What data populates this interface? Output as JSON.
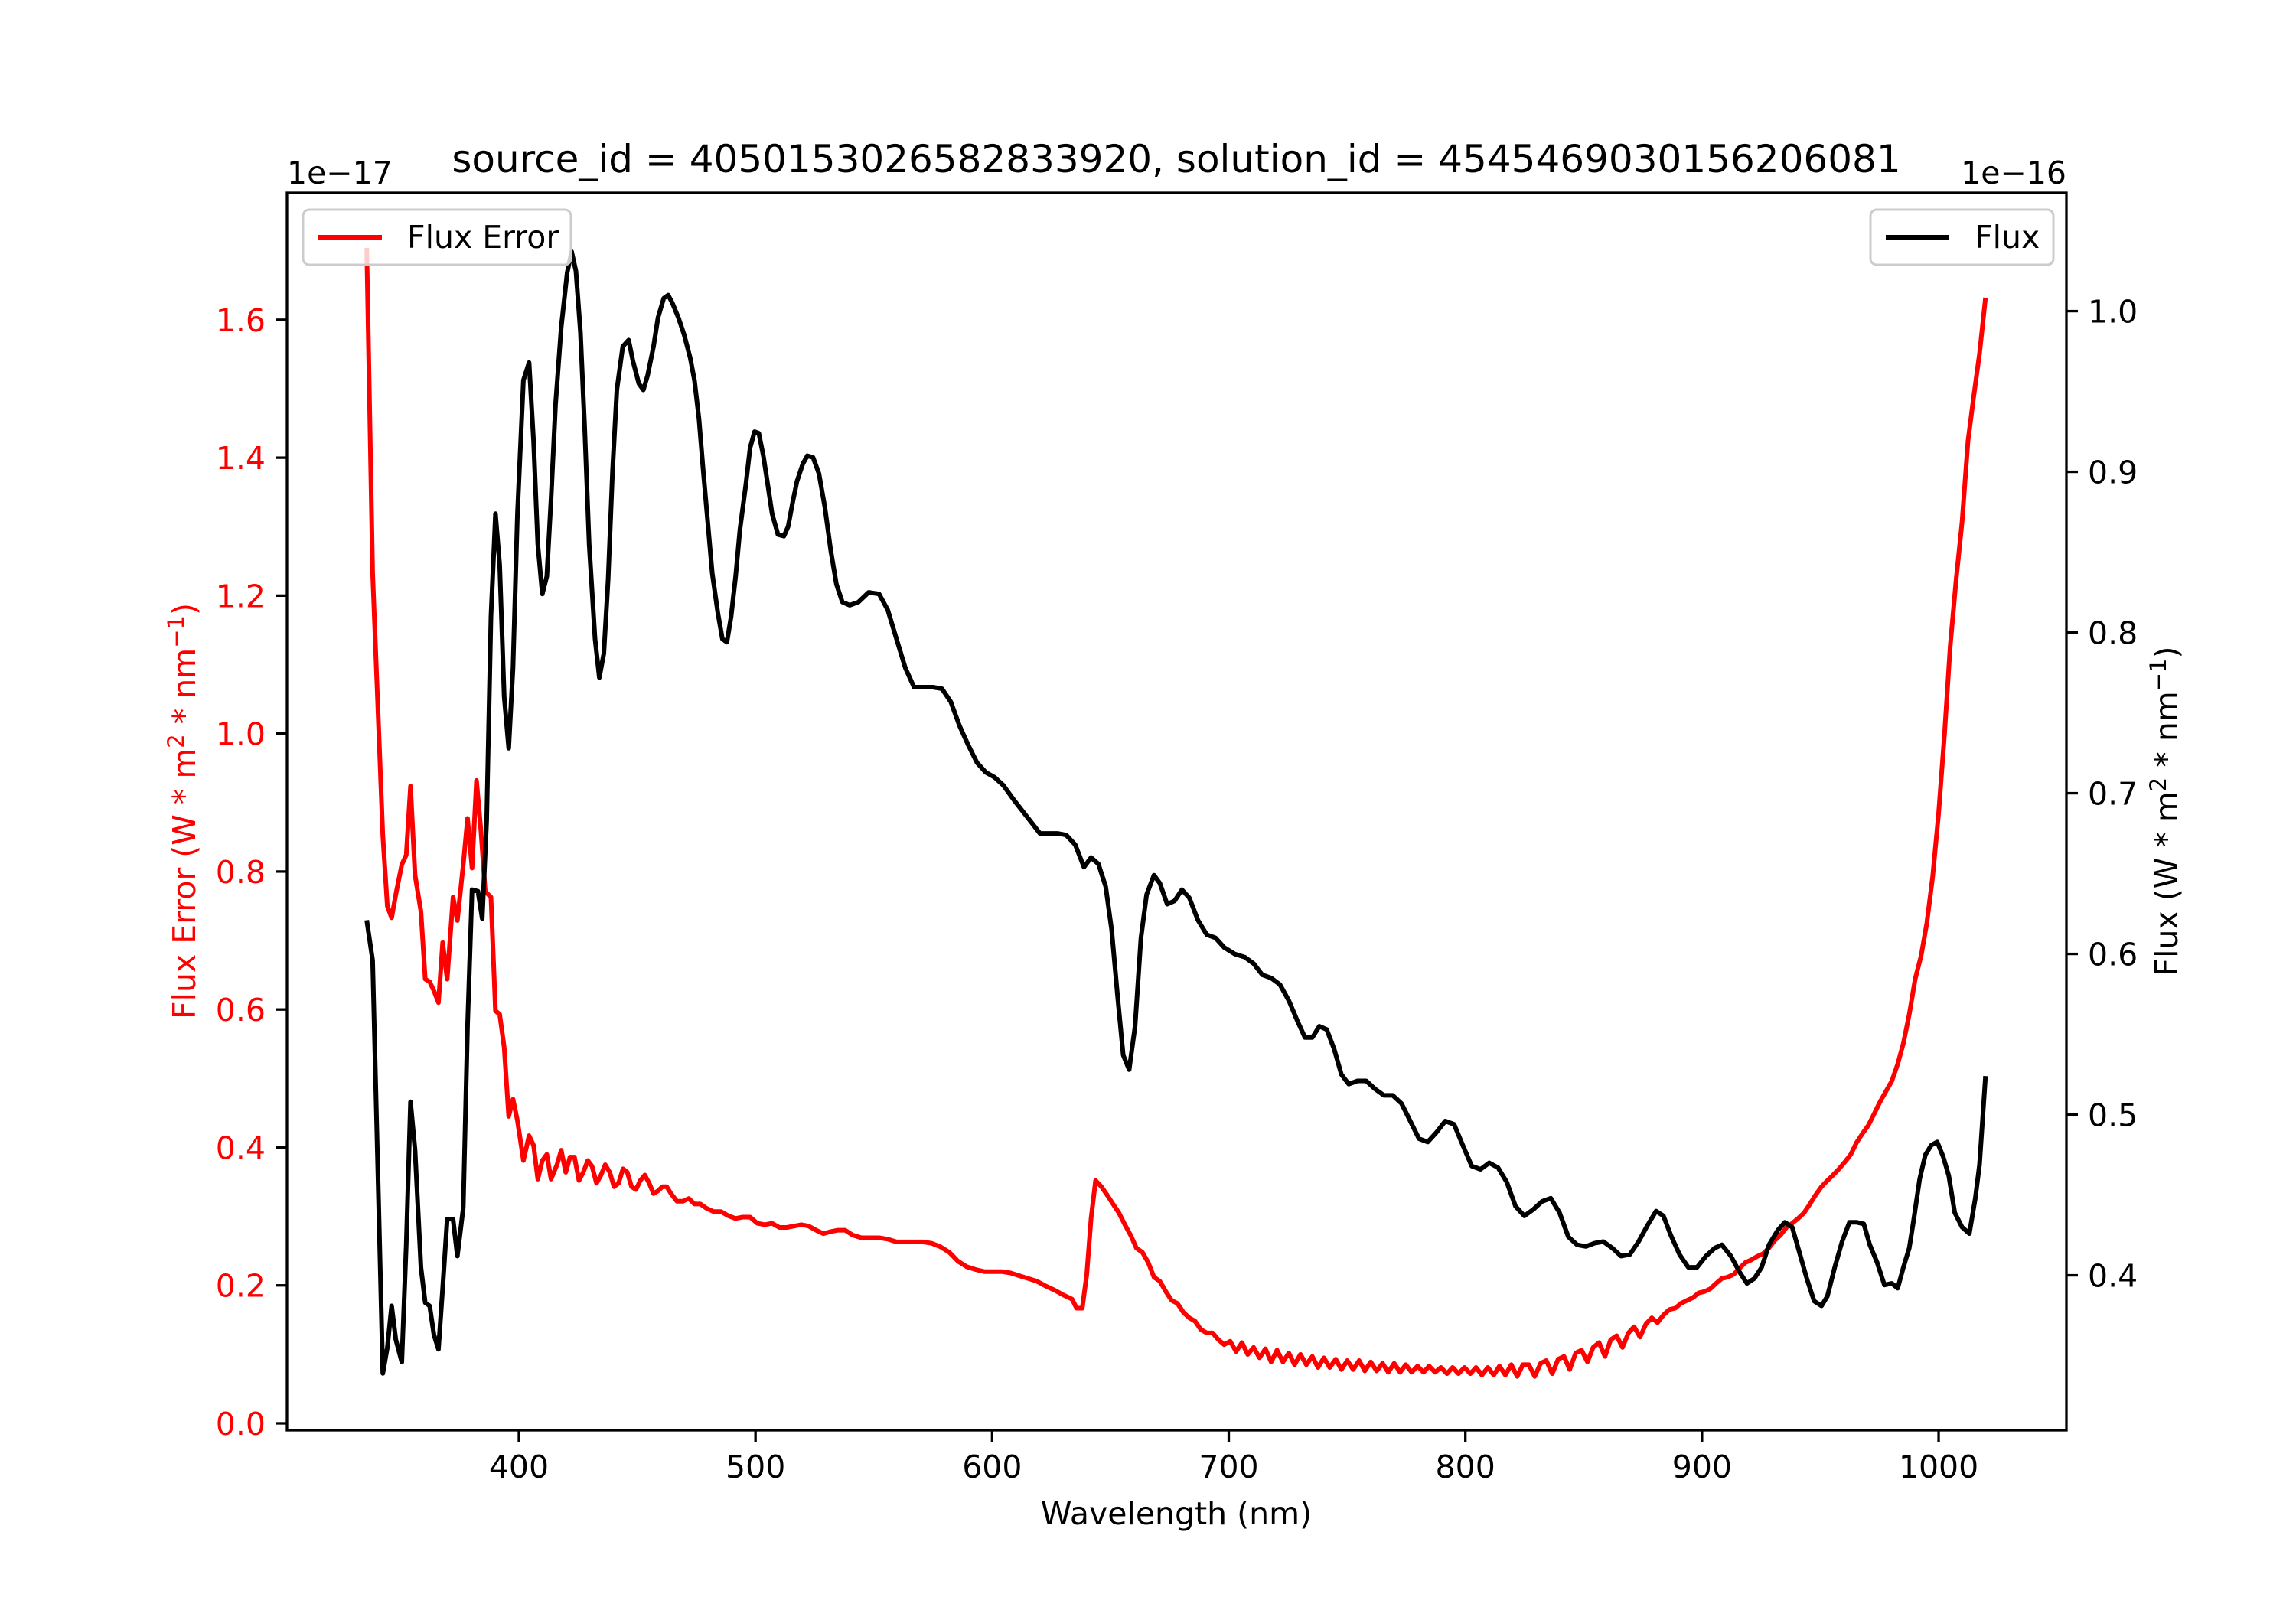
{
  "chart_data": {
    "type": "line",
    "title": "source_id = 4050153026582833920, solution_id = 4545469030156206081",
    "xlabel": "Wavelength (nm)",
    "xlim": [
      302,
      1054
    ],
    "xticks": [
      400,
      500,
      600,
      700,
      800,
      900,
      1000
    ],
    "left_axis": {
      "ylabel_parts": [
        "Flux Error (W * m",
        "2",
        " * nm",
        "−1",
        ")"
      ],
      "offset_text": "1e−17",
      "ylim": [
        -0.01,
        1.784
      ],
      "yticks": [
        "0.0",
        "0.2",
        "0.4",
        "0.6",
        "0.8",
        "1.0",
        "1.2",
        "1.4",
        "1.6"
      ],
      "color": "#ff0000"
    },
    "right_axis": {
      "ylabel_parts": [
        "Flux (W * m",
        "2",
        " * nm",
        "−1",
        ")"
      ],
      "offset_text": "1e−16",
      "ylim": [
        0.3036,
        1.0736
      ],
      "yticks": [
        "0.4",
        "0.5",
        "0.6",
        "0.7",
        "0.8",
        "0.9",
        "1.0"
      ],
      "color": "#000000"
    },
    "legend_left": {
      "label": "Flux Error",
      "placement": "upper-left"
    },
    "legend_right": {
      "label": "Flux",
      "placement": "upper-right"
    },
    "series": [
      {
        "name": "Flux Error",
        "axis": "left",
        "color": "#ff0000",
        "x": [
          335.7,
          338.2,
          340.7,
          342.5,
          344.4,
          346.2,
          348.0,
          350.5,
          352.4,
          354.2,
          356.1,
          358.6,
          360.4,
          362.3,
          364.1,
          366.0,
          367.8,
          369.7,
          372.2,
          374.0,
          376.5,
          378.3,
          380.2,
          382.1,
          383.9,
          385.8,
          388.2,
          390.1,
          391.9,
          393.8,
          395.7,
          397.5,
          399.4,
          401.9,
          404.3,
          406.2,
          408.0,
          409.9,
          411.8,
          413.6,
          416.1,
          417.9,
          419.8,
          421.6,
          423.5,
          425.4,
          427.2,
          429.1,
          430.9,
          432.8,
          434.7,
          436.5,
          438.4,
          440.2,
          442.1,
          444.0,
          445.8,
          447.6,
          449.5,
          451.3,
          453.2,
          455.1,
          456.9,
          458.8,
          460.6,
          462.5,
          464.3,
          466.8,
          469.3,
          471.8,
          474.2,
          476.7,
          479.2,
          482.3,
          485.4,
          488.5,
          491.5,
          494.6,
          497.7,
          500.8,
          503.9,
          507.0,
          510.1,
          513.2,
          516.3,
          519.4,
          522.5,
          525.6,
          528.7,
          531.8,
          534.8,
          537.9,
          541.0,
          544.7,
          548.5,
          552.2,
          555.9,
          559.6,
          563.3,
          567.0,
          570.7,
          574.4,
          578.1,
          581.9,
          585.6,
          589.3,
          593.0,
          596.7,
          600.4,
          604.1,
          607.8,
          611.5,
          615.2,
          618.9,
          622.7,
          626.4,
          630.1,
          633.8,
          635.7,
          638.1,
          640.0,
          641.8,
          643.7,
          646.2,
          648.6,
          651.1,
          653.6,
          656.1,
          658.5,
          661.0,
          663.5,
          666.0,
          668.4,
          670.9,
          673.4,
          675.9,
          678.3,
          680.8,
          683.3,
          685.8,
          688.2,
          690.7,
          693.2,
          695.7,
          698.1,
          700.6,
          703.1,
          705.6,
          708.0,
          710.5,
          713.0,
          715.5,
          717.9,
          720.4,
          722.9,
          725.4,
          727.8,
          730.3,
          732.8,
          735.3,
          737.7,
          740.2,
          742.7,
          745.2,
          747.6,
          750.1,
          752.6,
          755.1,
          757.5,
          760.0,
          762.5,
          765.0,
          767.4,
          769.9,
          772.4,
          774.8,
          777.3,
          779.8,
          782.3,
          784.7,
          787.2,
          789.7,
          792.2,
          794.6,
          797.1,
          799.6,
          802.1,
          804.5,
          807.0,
          809.5,
          812.0,
          814.4,
          816.9,
          819.4,
          821.9,
          824.3,
          826.8,
          829.3,
          831.8,
          834.2,
          836.7,
          839.2,
          841.7,
          844.1,
          846.6,
          849.1,
          851.6,
          854.0,
          856.5,
          859.0,
          861.4,
          863.9,
          866.4,
          868.9,
          871.3,
          873.8,
          876.3,
          878.8,
          881.2,
          883.7,
          886.2,
          888.7,
          891.1,
          893.6,
          896.1,
          898.6,
          901.0,
          903.5,
          906.0,
          908.4,
          910.9,
          913.4,
          915.9,
          918.3,
          920.8,
          923.3,
          925.8,
          928.2,
          930.7,
          933.2,
          935.7,
          938.1,
          940.6,
          943.1,
          945.6,
          948.0,
          950.5,
          953.0,
          955.4,
          957.9,
          960.4,
          962.9,
          965.3,
          967.8,
          970.3,
          972.8,
          975.2,
          977.7,
          980.2,
          982.7,
          985.1,
          987.6,
          990.1,
          992.6,
          995.0,
          997.5,
          1000.0,
          1002.5,
          1004.9,
          1007.4,
          1009.9,
          1012.4,
          1014.8,
          1017.3,
          1019.8
        ],
        "y": [
          1.704,
          1.233,
          1.011,
          0.852,
          0.75,
          0.733,
          0.767,
          0.81,
          0.824,
          0.924,
          0.795,
          0.742,
          0.644,
          0.64,
          0.627,
          0.61,
          0.697,
          0.644,
          0.763,
          0.729,
          0.81,
          0.877,
          0.805,
          0.932,
          0.862,
          0.771,
          0.763,
          0.598,
          0.593,
          0.545,
          0.445,
          0.47,
          0.439,
          0.381,
          0.417,
          0.403,
          0.354,
          0.381,
          0.39,
          0.354,
          0.375,
          0.396,
          0.364,
          0.386,
          0.386,
          0.352,
          0.364,
          0.381,
          0.373,
          0.348,
          0.36,
          0.375,
          0.364,
          0.343,
          0.348,
          0.369,
          0.364,
          0.343,
          0.339,
          0.352,
          0.36,
          0.348,
          0.333,
          0.337,
          0.343,
          0.343,
          0.333,
          0.322,
          0.322,
          0.326,
          0.318,
          0.318,
          0.312,
          0.307,
          0.307,
          0.301,
          0.297,
          0.299,
          0.299,
          0.29,
          0.288,
          0.29,
          0.284,
          0.284,
          0.286,
          0.288,
          0.286,
          0.28,
          0.275,
          0.278,
          0.28,
          0.28,
          0.273,
          0.269,
          0.269,
          0.269,
          0.267,
          0.263,
          0.263,
          0.263,
          0.263,
          0.261,
          0.256,
          0.248,
          0.235,
          0.227,
          0.223,
          0.22,
          0.22,
          0.22,
          0.218,
          0.214,
          0.21,
          0.206,
          0.199,
          0.193,
          0.186,
          0.18,
          0.167,
          0.167,
          0.216,
          0.297,
          0.352,
          0.343,
          0.331,
          0.318,
          0.305,
          0.288,
          0.273,
          0.254,
          0.248,
          0.233,
          0.212,
          0.206,
          0.191,
          0.178,
          0.174,
          0.161,
          0.153,
          0.148,
          0.136,
          0.131,
          0.131,
          0.121,
          0.114,
          0.119,
          0.104,
          0.117,
          0.1,
          0.11,
          0.095,
          0.108,
          0.089,
          0.106,
          0.089,
          0.102,
          0.085,
          0.1,
          0.085,
          0.097,
          0.081,
          0.095,
          0.081,
          0.093,
          0.078,
          0.091,
          0.078,
          0.091,
          0.076,
          0.089,
          0.076,
          0.087,
          0.074,
          0.087,
          0.074,
          0.085,
          0.074,
          0.083,
          0.074,
          0.083,
          0.074,
          0.081,
          0.072,
          0.081,
          0.072,
          0.081,
          0.072,
          0.081,
          0.07,
          0.081,
          0.07,
          0.083,
          0.07,
          0.085,
          0.068,
          0.085,
          0.085,
          0.068,
          0.087,
          0.091,
          0.072,
          0.093,
          0.097,
          0.078,
          0.102,
          0.106,
          0.089,
          0.11,
          0.117,
          0.097,
          0.121,
          0.127,
          0.11,
          0.131,
          0.14,
          0.125,
          0.144,
          0.153,
          0.146,
          0.157,
          0.165,
          0.167,
          0.174,
          0.178,
          0.182,
          0.189,
          0.191,
          0.195,
          0.203,
          0.21,
          0.212,
          0.216,
          0.225,
          0.233,
          0.237,
          0.242,
          0.246,
          0.254,
          0.265,
          0.273,
          0.284,
          0.29,
          0.297,
          0.305,
          0.318,
          0.331,
          0.343,
          0.352,
          0.36,
          0.369,
          0.379,
          0.39,
          0.407,
          0.42,
          0.432,
          0.449,
          0.466,
          0.481,
          0.496,
          0.521,
          0.551,
          0.593,
          0.644,
          0.678,
          0.725,
          0.793,
          0.884,
          1.0,
          1.127,
          1.223,
          1.307,
          1.424,
          1.488,
          1.551,
          1.632
        ]
      },
      {
        "name": "Flux",
        "axis": "right",
        "color": "#000000",
        "x": [
          335.7,
          338.2,
          340.7,
          342.5,
          344.4,
          346.2,
          348.0,
          350.5,
          352.4,
          354.2,
          356.1,
          358.6,
          360.4,
          362.3,
          364.1,
          366.0,
          367.8,
          369.7,
          372.2,
          374.0,
          376.5,
          378.3,
          380.2,
          382.7,
          384.5,
          386.4,
          388.2,
          390.1,
          391.9,
          393.8,
          395.7,
          397.5,
          399.4,
          401.9,
          404.3,
          406.2,
          408.0,
          409.9,
          411.8,
          413.6,
          415.5,
          417.9,
          420.4,
          422.3,
          424.1,
          426.0,
          427.8,
          429.7,
          432.2,
          434.0,
          435.9,
          437.7,
          439.6,
          441.4,
          443.9,
          446.4,
          448.2,
          450.7,
          452.6,
          454.4,
          456.9,
          458.8,
          461.2,
          463.1,
          464.9,
          467.4,
          469.9,
          472.4,
          474.2,
          476.1,
          477.9,
          479.8,
          481.7,
          484.1,
          486.0,
          487.9,
          489.7,
          491.6,
          493.4,
          495.9,
          497.7,
          499.6,
          501.4,
          503.3,
          505.2,
          507.0,
          509.5,
          512.0,
          513.8,
          515.7,
          517.5,
          520.0,
          521.9,
          524.3,
          526.8,
          529.3,
          531.8,
          534.2,
          536.7,
          539.8,
          543.5,
          547.8,
          552.2,
          555.9,
          559.6,
          563.3,
          567.0,
          570.7,
          575.0,
          578.8,
          582.5,
          586.2,
          589.9,
          593.6,
          597.3,
          601.0,
          604.7,
          609.1,
          612.8,
          616.5,
          620.2,
          623.9,
          627.6,
          631.3,
          635.1,
          638.8,
          641.8,
          644.9,
          648.0,
          650.5,
          653.0,
          655.4,
          657.9,
          660.4,
          662.9,
          665.3,
          668.4,
          670.9,
          674.0,
          677.1,
          680.2,
          683.3,
          687.0,
          690.7,
          694.4,
          698.1,
          702.5,
          706.8,
          710.5,
          714.2,
          717.9,
          721.6,
          725.4,
          729.1,
          732.2,
          735.3,
          738.3,
          741.4,
          744.5,
          747.6,
          750.7,
          754.4,
          758.1,
          761.8,
          765.6,
          769.3,
          773.0,
          776.7,
          780.4,
          784.1,
          787.8,
          791.5,
          795.2,
          798.9,
          802.7,
          806.4,
          810.1,
          813.8,
          817.5,
          821.2,
          824.9,
          828.7,
          832.4,
          836.1,
          839.8,
          843.5,
          847.2,
          850.9,
          854.6,
          858.3,
          862.1,
          865.8,
          869.5,
          873.2,
          876.9,
          880.6,
          883.7,
          886.8,
          890.5,
          894.2,
          897.9,
          901.7,
          905.4,
          908.4,
          912.2,
          915.9,
          919.0,
          922.1,
          925.2,
          928.3,
          932.0,
          935.0,
          938.1,
          941.2,
          944.3,
          947.4,
          950.5,
          953.0,
          956.1,
          959.2,
          962.3,
          965.4,
          968.4,
          970.9,
          974.0,
          977.1,
          980.2,
          982.7,
          985.1,
          987.6,
          989.5,
          992.0,
          994.4,
          996.9,
          999.4,
          1001.9,
          1004.3,
          1006.8,
          1009.9,
          1013.0,
          1015.5,
          1017.3,
          1019.8
        ],
        "y": [
          0.621,
          0.596,
          0.446,
          0.339,
          0.355,
          0.381,
          0.36,
          0.346,
          0.419,
          0.508,
          0.478,
          0.405,
          0.383,
          0.381,
          0.363,
          0.354,
          0.392,
          0.435,
          0.435,
          0.412,
          0.442,
          0.555,
          0.64,
          0.639,
          0.622,
          0.683,
          0.81,
          0.874,
          0.842,
          0.76,
          0.728,
          0.778,
          0.874,
          0.957,
          0.968,
          0.919,
          0.855,
          0.824,
          0.835,
          0.883,
          0.942,
          0.99,
          1.024,
          1.037,
          1.025,
          0.987,
          0.928,
          0.855,
          0.796,
          0.772,
          0.787,
          0.833,
          0.901,
          0.951,
          0.978,
          0.982,
          0.969,
          0.955,
          0.951,
          0.96,
          0.978,
          0.996,
          1.008,
          1.01,
          1.005,
          0.996,
          0.985,
          0.971,
          0.957,
          0.933,
          0.901,
          0.869,
          0.837,
          0.812,
          0.796,
          0.794,
          0.81,
          0.835,
          0.864,
          0.892,
          0.915,
          0.925,
          0.924,
          0.91,
          0.892,
          0.874,
          0.861,
          0.86,
          0.866,
          0.881,
          0.894,
          0.905,
          0.91,
          0.909,
          0.899,
          0.878,
          0.851,
          0.83,
          0.819,
          0.817,
          0.819,
          0.825,
          0.824,
          0.814,
          0.796,
          0.778,
          0.766,
          0.766,
          0.766,
          0.765,
          0.757,
          0.742,
          0.73,
          0.719,
          0.713,
          0.71,
          0.705,
          0.696,
          0.689,
          0.682,
          0.675,
          0.675,
          0.675,
          0.674,
          0.668,
          0.654,
          0.66,
          0.656,
          0.642,
          0.615,
          0.574,
          0.537,
          0.528,
          0.555,
          0.61,
          0.637,
          0.649,
          0.644,
          0.631,
          0.633,
          0.64,
          0.635,
          0.621,
          0.612,
          0.61,
          0.604,
          0.6,
          0.598,
          0.594,
          0.587,
          0.585,
          0.581,
          0.571,
          0.558,
          0.548,
          0.548,
          0.555,
          0.553,
          0.541,
          0.525,
          0.519,
          0.521,
          0.521,
          0.516,
          0.512,
          0.512,
          0.507,
          0.496,
          0.485,
          0.483,
          0.489,
          0.496,
          0.494,
          0.481,
          0.468,
          0.466,
          0.47,
          0.467,
          0.458,
          0.443,
          0.437,
          0.441,
          0.446,
          0.448,
          0.439,
          0.424,
          0.419,
          0.418,
          0.42,
          0.421,
          0.417,
          0.412,
          0.413,
          0.421,
          0.431,
          0.44,
          0.437,
          0.425,
          0.413,
          0.405,
          0.405,
          0.412,
          0.417,
          0.419,
          0.412,
          0.402,
          0.395,
          0.398,
          0.405,
          0.419,
          0.428,
          0.433,
          0.43,
          0.414,
          0.398,
          0.384,
          0.381,
          0.387,
          0.405,
          0.421,
          0.433,
          0.433,
          0.432,
          0.419,
          0.408,
          0.394,
          0.395,
          0.392,
          0.405,
          0.417,
          0.435,
          0.46,
          0.475,
          0.481,
          0.483,
          0.474,
          0.462,
          0.439,
          0.43,
          0.426,
          0.448,
          0.469,
          0.524
        ]
      }
    ]
  }
}
